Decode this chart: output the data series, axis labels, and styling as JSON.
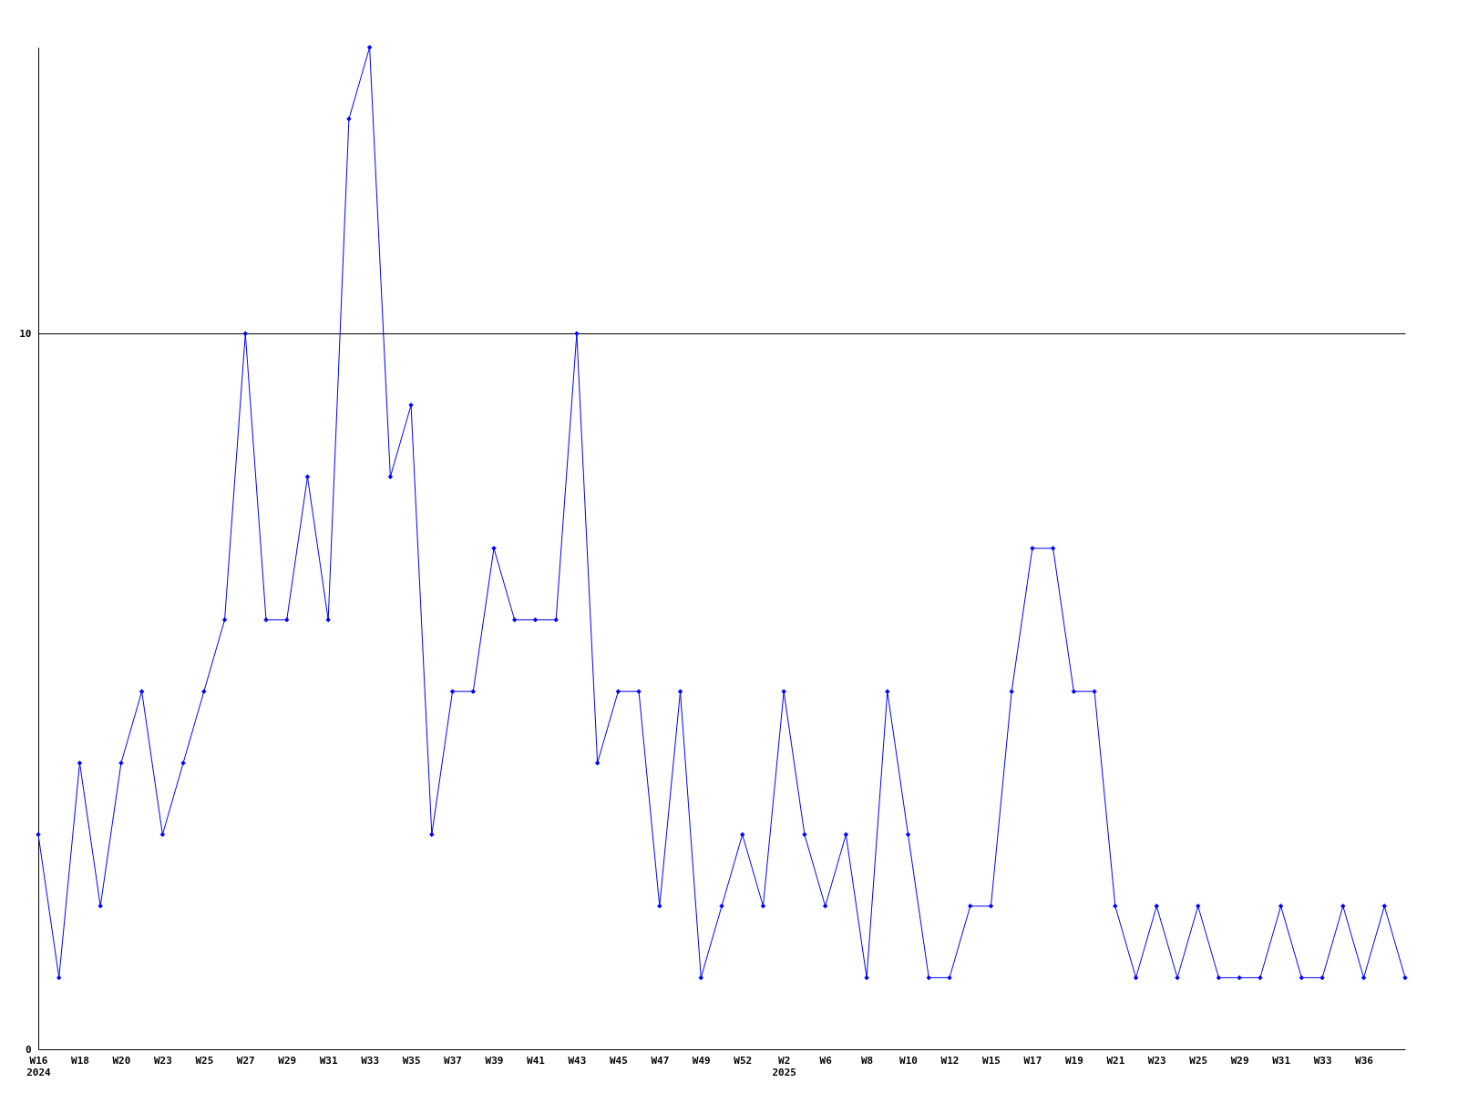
{
  "chart_data": {
    "type": "line",
    "categories": [
      "W16",
      null,
      "W18",
      null,
      "W20",
      null,
      "W23",
      null,
      "W25",
      null,
      "W27",
      null,
      "W29",
      null,
      "W31",
      null,
      "W33",
      null,
      "W35",
      null,
      "W37",
      null,
      "W39",
      null,
      "W41",
      null,
      "W43",
      null,
      "W45",
      null,
      "W47",
      null,
      "W49",
      null,
      "W52",
      null,
      "W2",
      null,
      "W6",
      null,
      "W8",
      null,
      "W10",
      null,
      "W12",
      null,
      "W15",
      null,
      "W17",
      null,
      "W19",
      null,
      "W21",
      null,
      "W23",
      null,
      "W25",
      null,
      "W29",
      null,
      "W31",
      null,
      "W33",
      null,
      "W36",
      null,
      null
    ],
    "series": [
      {
        "color": "#0000ff",
        "values": [
          3,
          1,
          4,
          2,
          4,
          5,
          3,
          4,
          5,
          6,
          10,
          6,
          6,
          8,
          6,
          13,
          14,
          8,
          9,
          3,
          5,
          5,
          7,
          6,
          6,
          6,
          10,
          4,
          5,
          5,
          2,
          5,
          1,
          2,
          3,
          2,
          5,
          3,
          2,
          3,
          1,
          5,
          3,
          1,
          1,
          2,
          2,
          5,
          7,
          7,
          5,
          5,
          2,
          1,
          2,
          1,
          2,
          1,
          1,
          1,
          2,
          1,
          1,
          2,
          1,
          2,
          1
        ]
      }
    ],
    "ylim": [
      0,
      14
    ],
    "yticks": [
      0,
      10
    ],
    "grid": "y",
    "marker": "diamond",
    "line_style": "solid",
    "annotations": [
      "2024",
      "2025"
    ]
  }
}
